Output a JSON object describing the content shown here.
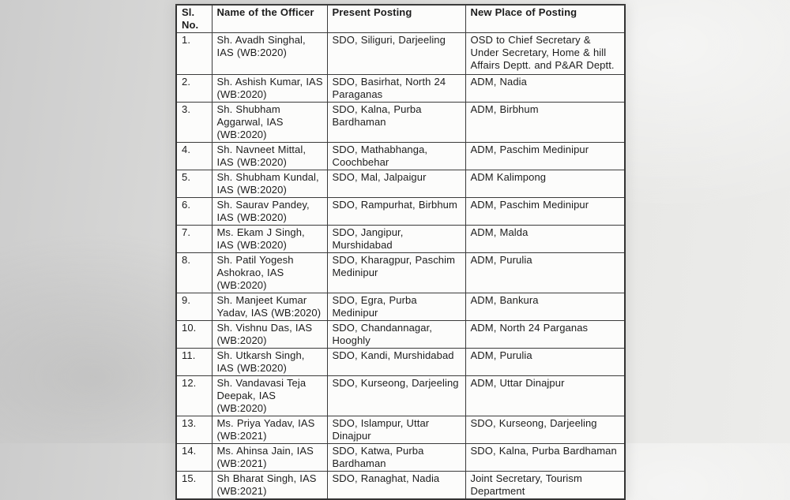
{
  "document": {
    "type": "scanned-transfer-posting-order-table",
    "paper_color": "#fcfcfb",
    "background_gray": "#d7d7d6",
    "border_color": "#3b3b3b",
    "text_color": "#1d1d1d"
  },
  "table": {
    "headers": [
      "Sl. No.",
      "Name of the Officer",
      "Present Posting",
      "New Place of Posting"
    ],
    "rows": [
      {
        "sl": "1.",
        "name": "Sh. Avadh Singhal, IAS (WB:2020)",
        "present": "SDO, Siliguri, Darjeeling",
        "new_posting": "OSD to Chief Secretary & Under Secretary, Home & hill Affairs Deptt. and P&AR Deptt."
      },
      {
        "sl": "2.",
        "name": "Sh. Ashish Kumar, IAS (WB:2020)",
        "present": "SDO, Basirhat, North 24 Paraganas",
        "new_posting": "ADM, Nadia"
      },
      {
        "sl": "3.",
        "name": "Sh. Shubham Aggarwal, IAS (WB:2020)",
        "present": "SDO, Kalna, Purba Bardhaman",
        "new_posting": "ADM, Birbhum"
      },
      {
        "sl": "4.",
        "name": "Sh. Navneet Mittal, IAS (WB:2020)",
        "present": "SDO, Mathabhanga, Coochbehar",
        "new_posting": "ADM, Paschim Medinipur"
      },
      {
        "sl": "5.",
        "name": "Sh. Shubham Kundal, IAS (WB:2020)",
        "present": "SDO, Mal, Jalpaigur",
        "new_posting": "ADM Kalimpong"
      },
      {
        "sl": "6.",
        "name": "Sh. Saurav Pandey, IAS (WB:2020)",
        "present": "SDO, Rampurhat, Birbhum",
        "new_posting": "ADM, Paschim Medinipur"
      },
      {
        "sl": "7.",
        "name": "Ms. Ekam J Singh, IAS (WB:2020)",
        "present": "SDO, Jangipur, Murshidabad",
        "new_posting": "ADM, Malda"
      },
      {
        "sl": "8.",
        "name": "Sh. Patil Yogesh Ashokrao, IAS (WB:2020)",
        "present": "SDO, Kharagpur, Paschim Medinipur",
        "new_posting": "ADM, Purulia"
      },
      {
        "sl": "9.",
        "name": "Sh. Manjeet Kumar Yadav, IAS (WB:2020)",
        "present": "SDO, Egra, Purba Medinipur",
        "new_posting": "ADM, Bankura"
      },
      {
        "sl": "10.",
        "name": "Sh. Vishnu Das, IAS (WB:2020)",
        "present": "SDO, Chandannagar, Hooghly",
        "new_posting": "ADM, North 24 Parganas"
      },
      {
        "sl": "11.",
        "name": "Sh. Utkarsh Singh, IAS (WB:2020)",
        "present": "SDO, Kandi, Murshidabad",
        "new_posting": "ADM, Purulia"
      },
      {
        "sl": "12.",
        "name": "Sh. Vandavasi Teja Deepak, IAS (WB:2020)",
        "present": "SDO, Kurseong, Darjeeling",
        "new_posting": "ADM, Uttar Dinajpur"
      },
      {
        "sl": "13.",
        "name": "Ms. Priya Yadav, IAS (WB:2021)",
        "present": "SDO, Islampur, Uttar Dinajpur",
        "new_posting": "SDO, Kurseong, Darjeeling"
      },
      {
        "sl": "14.",
        "name": "Ms. Ahinsa Jain, IAS (WB:2021)",
        "present": "SDO, Katwa, Purba Bardhaman",
        "new_posting": "SDO, Kalna, Purba Bardhaman"
      },
      {
        "sl": "15.",
        "name": "Sh Bharat Singh, IAS (WB:2021)",
        "present": "SDO, Ranaghat, Nadia",
        "new_posting": "Joint Secretary, Tourism Department"
      }
    ]
  }
}
